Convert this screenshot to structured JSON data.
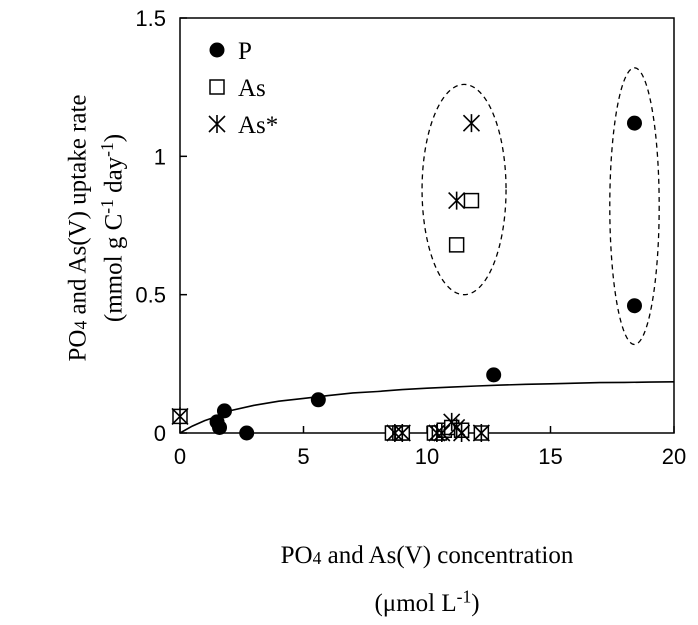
{
  "chart_data": {
    "type": "scatter",
    "ylabel_line1": {
      "pre": "PO",
      "sub": "4",
      "post": " and As(V) uptake rate"
    },
    "ylabel_line2": {
      "pre": "(mmol g C",
      "sup1": "-1",
      "mid": " day",
      "sup2": "-1",
      "post": ")"
    },
    "xlabel_line1": {
      "pre": "PO",
      "sub": "4",
      "post": " and As(V) concentration"
    },
    "xlabel_line2": {
      "pre": "(μmol L",
      "sup": "-1",
      "post": ")"
    },
    "xlim": [
      0,
      20
    ],
    "ylim": [
      0,
      1.5
    ],
    "xticks": [
      "0",
      "5",
      "10",
      "15",
      "20"
    ],
    "yticks": [
      "0",
      "0.5",
      "1",
      "1.5"
    ],
    "legend_position": "top-left",
    "series": [
      {
        "name": "P",
        "marker": "filled-circle",
        "points": [
          [
            1.5,
            0.04
          ],
          [
            1.6,
            0.02
          ],
          [
            1.8,
            0.08
          ],
          [
            2.7,
            0.0
          ],
          [
            5.6,
            0.12
          ],
          [
            12.7,
            0.21
          ],
          [
            18.4,
            1.12
          ],
          [
            18.4,
            0.46
          ]
        ]
      },
      {
        "name": "As",
        "marker": "open-square",
        "points": [
          [
            0.0,
            0.06
          ],
          [
            8.6,
            0.0
          ],
          [
            8.9,
            0.0
          ],
          [
            9.0,
            0.0
          ],
          [
            10.3,
            0.0
          ],
          [
            10.5,
            0.0
          ],
          [
            10.7,
            0.01
          ],
          [
            11.0,
            0.02
          ],
          [
            11.4,
            0.01
          ],
          [
            12.2,
            0.0
          ],
          [
            11.2,
            0.68
          ],
          [
            11.8,
            0.84
          ]
        ]
      },
      {
        "name": "As*",
        "marker": "asterisk",
        "points": [
          [
            0.0,
            0.06
          ],
          [
            8.7,
            0.0
          ],
          [
            9.0,
            0.0
          ],
          [
            10.4,
            0.0
          ],
          [
            10.6,
            0.0
          ],
          [
            11.0,
            0.04
          ],
          [
            11.2,
            0.02
          ],
          [
            11.4,
            0.0
          ],
          [
            12.2,
            0.0
          ],
          [
            11.2,
            0.84
          ],
          [
            11.8,
            1.12
          ]
        ]
      },
      {
        "name": "",
        "type": "line",
        "points": [
          [
            0.0,
            0.0
          ],
          [
            0.5,
            0.025
          ],
          [
            1.0,
            0.045
          ],
          [
            1.5,
            0.06
          ],
          [
            2.0,
            0.08
          ],
          [
            3.0,
            0.1
          ],
          [
            4.0,
            0.115
          ],
          [
            5.0,
            0.125
          ],
          [
            6.0,
            0.135
          ],
          [
            7.0,
            0.145
          ],
          [
            8.0,
            0.15
          ],
          [
            9.0,
            0.157
          ],
          [
            10.0,
            0.162
          ],
          [
            11.0,
            0.166
          ],
          [
            12.0,
            0.17
          ],
          [
            13.0,
            0.173
          ],
          [
            14.0,
            0.176
          ],
          [
            15.0,
            0.178
          ],
          [
            16.0,
            0.18
          ],
          [
            17.0,
            0.182
          ],
          [
            18.0,
            0.183
          ],
          [
            19.0,
            0.184
          ],
          [
            20.0,
            0.185
          ]
        ]
      }
    ],
    "annotations": [
      {
        "type": "dashed-ellipse",
        "cx": 11.5,
        "cy": 0.88,
        "rx": 1.7,
        "ry": 0.38
      },
      {
        "type": "dashed-ellipse",
        "cx": 18.4,
        "cy": 0.82,
        "rx": 1.0,
        "ry": 0.5
      }
    ]
  }
}
